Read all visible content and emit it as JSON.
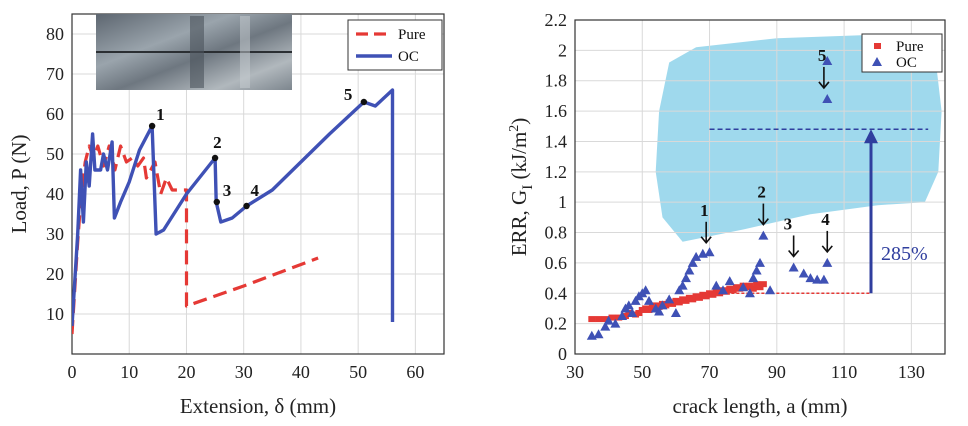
{
  "chart_data": [
    {
      "type": "line",
      "xlabel": "Extension, δ (mm)",
      "ylabel": "Load, P (N)",
      "xlim": [
        0,
        65
      ],
      "ylim": [
        0,
        85
      ],
      "xticks": [
        "0",
        "10",
        "20",
        "30",
        "40",
        "50",
        "60"
      ],
      "yticks": [
        "10",
        "20",
        "30",
        "40",
        "50",
        "60",
        "70",
        "80"
      ],
      "grid": true,
      "legend_position": "top-right",
      "inset_photo": "specimen-photo",
      "colors": {
        "pure": "#e53935",
        "oc": "#3f51b5"
      },
      "series": [
        {
          "name": "Pure",
          "style": "dashed",
          "points": [
            [
              0,
              5
            ],
            [
              1,
              28
            ],
            [
              1.6,
              40
            ],
            [
              2.3,
              48
            ],
            [
              3,
              52
            ],
            [
              3.8,
              49
            ],
            [
              4.5,
              52
            ],
            [
              5.5,
              47
            ],
            [
              6.5,
              52
            ],
            [
              7.5,
              46
            ],
            [
              8.5,
              52
            ],
            [
              9.5,
              48
            ],
            [
              10.5,
              49
            ],
            [
              11.5,
              47
            ],
            [
              12.5,
              49
            ],
            [
              13,
              44
            ],
            [
              14.5,
              48
            ],
            [
              15.5,
              40
            ],
            [
              16.5,
              44
            ],
            [
              17.5,
              41
            ],
            [
              20,
              41
            ],
            [
              20,
              12
            ],
            [
              30,
              17
            ],
            [
              43,
              24
            ]
          ]
        },
        {
          "name": "OC",
          "style": "solid",
          "points": [
            [
              0,
              7
            ],
            [
              1,
              30
            ],
            [
              1.5,
              46
            ],
            [
              2,
              33
            ],
            [
              2.5,
              48
            ],
            [
              3,
              42
            ],
            [
              3.6,
              55
            ],
            [
              4,
              46
            ],
            [
              5,
              46
            ],
            [
              5.5,
              50
            ],
            [
              6.2,
              46
            ],
            [
              7,
              53
            ],
            [
              7.4,
              34
            ],
            [
              8.5,
              38
            ],
            [
              10,
              43
            ],
            [
              11.8,
              51
            ],
            [
              14,
              57
            ],
            [
              14.7,
              30
            ],
            [
              16,
              31
            ],
            [
              20,
              40
            ],
            [
              25,
              49
            ],
            [
              25.2,
              38
            ],
            [
              26,
              33
            ],
            [
              28,
              34
            ],
            [
              30.5,
              37
            ],
            [
              35,
              41
            ],
            [
              40,
              48
            ],
            [
              45,
              55
            ],
            [
              51,
              63
            ],
            [
              53,
              62
            ],
            [
              56,
              66
            ],
            [
              56,
              8
            ]
          ]
        }
      ],
      "annotations": [
        {
          "label": "1",
          "x": 14,
          "y": 57
        },
        {
          "label": "2",
          "x": 25,
          "y": 49
        },
        {
          "label": "3",
          "x": 25.3,
          "y": 38
        },
        {
          "label": "4",
          "x": 30.5,
          "y": 37
        },
        {
          "label": "5",
          "x": 51,
          "y": 63
        }
      ]
    },
    {
      "type": "scatter",
      "xlabel": "crack length, a (mm)",
      "ylabel": "ERR, G_I (kJ/m^2)",
      "ylabel_parts": {
        "main": "ERR, G",
        "sub": "I",
        "unit": " (kJ/m",
        "sup": "2",
        "close": ")"
      },
      "xlim": [
        30,
        140
      ],
      "ylim": [
        0,
        2.2
      ],
      "xticks": [
        "30",
        "50",
        "70",
        "90",
        "110",
        "130"
      ],
      "yticks": [
        "0",
        "0.2",
        "0.4",
        "0.6",
        "0.8",
        "1",
        "1.2",
        "1.4",
        "1.6",
        "1.8",
        "2",
        "2.2"
      ],
      "grid": true,
      "legend_position": "top-right",
      "colors": {
        "pure": "#e53935",
        "oc": "#3f51b5",
        "region": "#8ed2ea"
      },
      "series": [
        {
          "name": "Pure",
          "marker": "square",
          "points": [
            [
              35,
              0.23
            ],
            [
              37,
              0.23
            ],
            [
              39,
              0.23
            ],
            [
              41,
              0.24
            ],
            [
              43,
              0.24
            ],
            [
              45,
              0.25
            ],
            [
              46,
              0.27
            ],
            [
              48,
              0.26
            ],
            [
              49,
              0.27
            ],
            [
              50,
              0.29
            ],
            [
              51,
              0.3
            ],
            [
              52,
              0.29
            ],
            [
              53,
              0.31
            ],
            [
              54,
              0.32
            ],
            [
              55,
              0.31
            ],
            [
              56,
              0.33
            ],
            [
              57,
              0.32
            ],
            [
              58,
              0.34
            ],
            [
              59,
              0.33
            ],
            [
              60,
              0.35
            ],
            [
              61,
              0.34
            ],
            [
              62,
              0.36
            ],
            [
              63,
              0.35
            ],
            [
              64,
              0.37
            ],
            [
              65,
              0.36
            ],
            [
              66,
              0.38
            ],
            [
              67,
              0.37
            ],
            [
              68,
              0.39
            ],
            [
              69,
              0.38
            ],
            [
              70,
              0.4
            ],
            [
              71,
              0.39
            ],
            [
              72,
              0.41
            ],
            [
              73,
              0.4
            ],
            [
              74,
              0.42
            ],
            [
              75,
              0.41
            ],
            [
              76,
              0.43
            ],
            [
              77,
              0.42
            ],
            [
              78,
              0.44
            ],
            [
              79,
              0.43
            ],
            [
              80,
              0.45
            ],
            [
              81,
              0.44
            ],
            [
              82,
              0.45
            ],
            [
              83,
              0.43
            ],
            [
              84,
              0.46
            ],
            [
              85,
              0.44
            ],
            [
              86,
              0.46
            ]
          ]
        },
        {
          "name": "OC",
          "marker": "triangle",
          "points": [
            [
              35,
              0.12
            ],
            [
              37,
              0.13
            ],
            [
              39,
              0.18
            ],
            [
              40,
              0.22
            ],
            [
              42,
              0.2
            ],
            [
              44,
              0.25
            ],
            [
              45,
              0.3
            ],
            [
              46,
              0.32
            ],
            [
              47,
              0.27
            ],
            [
              48,
              0.35
            ],
            [
              49,
              0.38
            ],
            [
              50,
              0.4
            ],
            [
              51,
              0.42
            ],
            [
              52,
              0.35
            ],
            [
              54,
              0.3
            ],
            [
              55,
              0.28
            ],
            [
              56,
              0.32
            ],
            [
              58,
              0.36
            ],
            [
              60,
              0.27
            ],
            [
              61,
              0.42
            ],
            [
              62,
              0.45
            ],
            [
              63,
              0.5
            ],
            [
              64,
              0.55
            ],
            [
              65,
              0.6
            ],
            [
              66,
              0.64
            ],
            [
              68,
              0.66
            ],
            [
              70,
              0.67
            ],
            [
              72,
              0.45
            ],
            [
              74,
              0.42
            ],
            [
              76,
              0.48
            ],
            [
              80,
              0.44
            ],
            [
              82,
              0.4
            ],
            [
              83,
              0.5
            ],
            [
              84,
              0.55
            ],
            [
              85,
              0.6
            ],
            [
              86,
              0.78
            ],
            [
              88,
              0.42
            ],
            [
              95,
              0.57
            ],
            [
              98,
              0.53
            ],
            [
              100,
              0.5
            ],
            [
              102,
              0.49
            ],
            [
              104,
              0.49
            ],
            [
              105,
              0.6
            ],
            [
              105,
              1.68
            ],
            [
              105,
              1.93
            ]
          ]
        }
      ],
      "annotations": [
        {
          "label": "1",
          "x": 69,
          "y": 0.66
        },
        {
          "label": "2",
          "x": 86,
          "y": 0.78
        },
        {
          "label": "3",
          "x": 95,
          "y": 0.57
        },
        {
          "label": "4",
          "x": 105,
          "y": 0.6
        },
        {
          "label": "5",
          "x": 104,
          "y": 1.68
        }
      ],
      "improvement_label": "285%",
      "baseline_level": 0.4,
      "improved_level": 1.48
    }
  ]
}
